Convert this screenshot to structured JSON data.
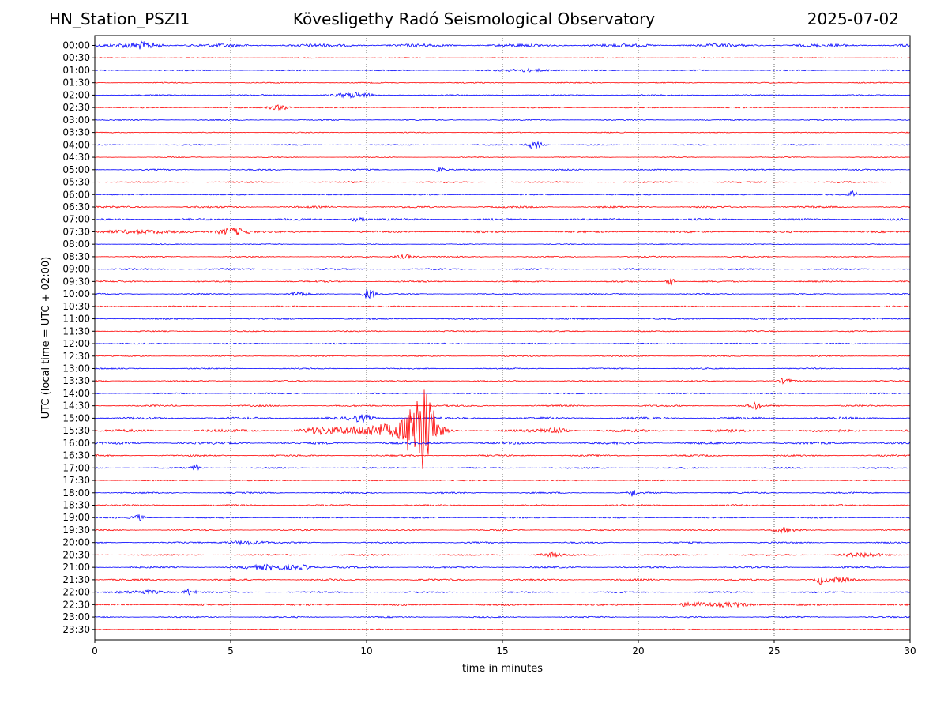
{
  "header": {
    "station": "HN_Station_PSZI1",
    "title": "Kövesligethy Radó Seismological Observatory",
    "date": "2025-07-02"
  },
  "chart_data": {
    "type": "line",
    "xlabel": "time in minutes",
    "ylabel": "UTC (local time = UTC + 02:00)",
    "xlim": [
      0,
      30
    ],
    "xticks": [
      "0",
      "5",
      "10",
      "15",
      "20",
      "25",
      "30"
    ],
    "grid": "vertical dotted lines at x = 5, 10, 15, 20, 25",
    "colors": {
      "even_rows": "#0000ff",
      "odd_rows": "#ff0000"
    },
    "rows": [
      "00:00",
      "00:30",
      "01:00",
      "01:30",
      "02:00",
      "02:30",
      "03:00",
      "03:30",
      "04:00",
      "04:30",
      "05:00",
      "05:30",
      "06:00",
      "06:30",
      "07:00",
      "07:30",
      "08:00",
      "08:30",
      "09:00",
      "09:30",
      "10:00",
      "10:30",
      "11:00",
      "11:30",
      "12:00",
      "12:30",
      "13:00",
      "13:30",
      "14:00",
      "14:30",
      "15:00",
      "15:30",
      "16:00",
      "16:30",
      "17:00",
      "17:30",
      "18:00",
      "18:30",
      "19:00",
      "19:30",
      "20:00",
      "20:30",
      "21:00",
      "21:30",
      "22:00",
      "22:30",
      "23:00",
      "23:30"
    ],
    "noise_level": [
      2.2,
      0.5,
      0.8,
      0.7,
      0.8,
      0.8,
      0.8,
      0.6,
      0.7,
      0.6,
      0.9,
      0.9,
      0.8,
      1.2,
      1.3,
      1.3,
      0.6,
      0.8,
      1.0,
      1.0,
      0.8,
      0.8,
      1.0,
      0.8,
      0.8,
      0.7,
      0.8,
      0.8,
      0.8,
      1.1,
      1.5,
      1.8,
      1.6,
      1.1,
      0.9,
      0.8,
      1.0,
      1.0,
      0.9,
      0.9,
      1.0,
      1.0,
      1.1,
      1.2,
      1.0,
      1.2,
      0.9,
      0.7
    ],
    "events": [
      {
        "row": "00:00",
        "t": 1.8,
        "amp": 4,
        "dur": 0.4
      },
      {
        "row": "01:00",
        "t": 16.0,
        "amp": 2,
        "dur": 0.6
      },
      {
        "row": "02:00",
        "t": 9.5,
        "amp": 3,
        "dur": 0.5
      },
      {
        "row": "02:30",
        "t": 6.8,
        "amp": 3,
        "dur": 0.3
      },
      {
        "row": "04:00",
        "t": 16.2,
        "amp": 6,
        "dur": 0.2
      },
      {
        "row": "05:00",
        "t": 12.7,
        "amp": 4,
        "dur": 0.1
      },
      {
        "row": "06:00",
        "t": 27.9,
        "amp": 5,
        "dur": 0.1
      },
      {
        "row": "07:00",
        "t": 9.7,
        "amp": 3,
        "dur": 0.2
      },
      {
        "row": "07:30",
        "t": 5.1,
        "amp": 5,
        "dur": 0.4
      },
      {
        "row": "07:30",
        "t": 1.5,
        "amp": 2.5,
        "dur": 0.8
      },
      {
        "row": "08:30",
        "t": 11.4,
        "amp": 2.5,
        "dur": 0.3
      },
      {
        "row": "09:30",
        "t": 21.2,
        "amp": 5,
        "dur": 0.1
      },
      {
        "row": "10:00",
        "t": 10.1,
        "amp": 8,
        "dur": 0.15
      },
      {
        "row": "10:00",
        "t": 7.5,
        "amp": 3,
        "dur": 0.2
      },
      {
        "row": "13:30",
        "t": 25.4,
        "amp": 3,
        "dur": 0.15
      },
      {
        "row": "14:30",
        "t": 24.3,
        "amp": 4,
        "dur": 0.15
      },
      {
        "row": "15:00",
        "t": 9.8,
        "amp": 4,
        "dur": 0.3
      },
      {
        "row": "15:30",
        "t": 12.0,
        "amp": 58,
        "dur": 0.35
      },
      {
        "row": "15:30",
        "t": 10.5,
        "amp": 8,
        "dur": 0.9
      },
      {
        "row": "15:30",
        "t": 8.3,
        "amp": 3,
        "dur": 0.5
      },
      {
        "row": "15:30",
        "t": 16.9,
        "amp": 4,
        "dur": 0.3
      },
      {
        "row": "17:00",
        "t": 3.7,
        "amp": 4,
        "dur": 0.1
      },
      {
        "row": "18:00",
        "t": 19.8,
        "amp": 5,
        "dur": 0.1
      },
      {
        "row": "19:00",
        "t": 1.6,
        "amp": 4,
        "dur": 0.15
      },
      {
        "row": "19:30",
        "t": 25.3,
        "amp": 3,
        "dur": 0.3
      },
      {
        "row": "20:00",
        "t": 5.5,
        "amp": 2.5,
        "dur": 0.5
      },
      {
        "row": "20:30",
        "t": 16.8,
        "amp": 2.5,
        "dur": 0.3
      },
      {
        "row": "20:30",
        "t": 28.2,
        "amp": 2.5,
        "dur": 0.5
      },
      {
        "row": "21:00",
        "t": 6.5,
        "amp": 3,
        "dur": 0.6
      },
      {
        "row": "21:00",
        "t": 7.6,
        "amp": 3,
        "dur": 0.3
      },
      {
        "row": "21:30",
        "t": 26.7,
        "amp": 5,
        "dur": 0.1
      },
      {
        "row": "21:30",
        "t": 27.3,
        "amp": 3,
        "dur": 0.3
      },
      {
        "row": "22:00",
        "t": 3.5,
        "amp": 4,
        "dur": 0.15
      },
      {
        "row": "22:00",
        "t": 2.0,
        "amp": 2,
        "dur": 0.6
      },
      {
        "row": "22:30",
        "t": 22.0,
        "amp": 2.5,
        "dur": 0.4
      },
      {
        "row": "22:30",
        "t": 23.5,
        "amp": 2.5,
        "dur": 0.6
      }
    ]
  }
}
